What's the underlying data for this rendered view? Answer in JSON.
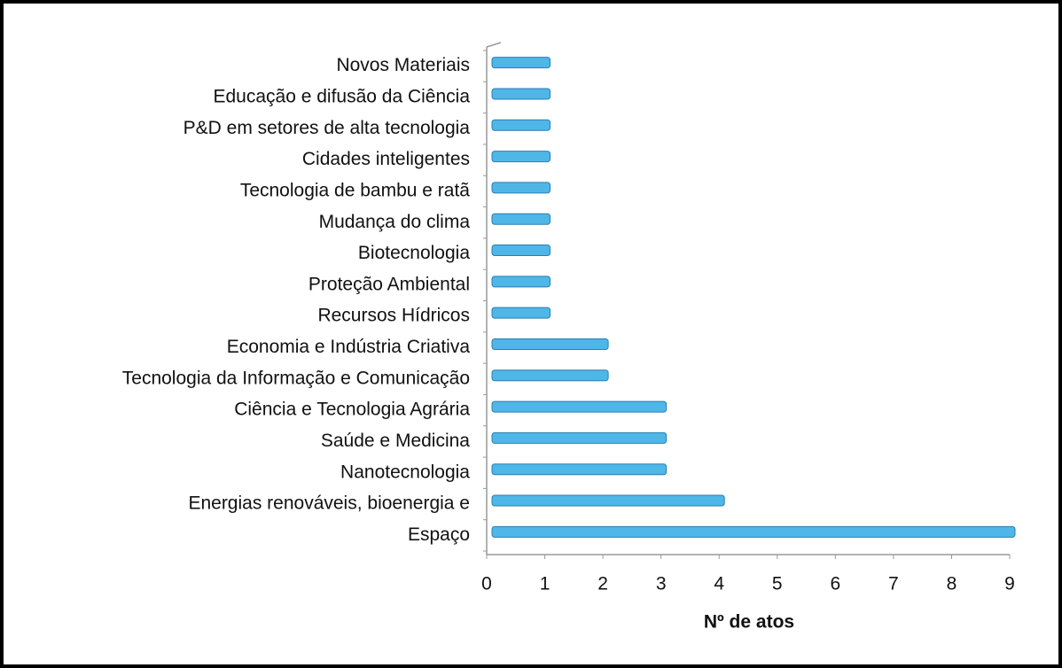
{
  "chart_data": {
    "type": "bar",
    "orientation": "horizontal",
    "categories": [
      "Novos Materiais",
      "Educação e difusão da Ciência",
      "P&D em setores de alta tecnologia",
      "Cidades inteligentes",
      "Tecnologia de bambu e ratã",
      "Mudança do clima",
      "Biotecnologia",
      "Proteção Ambiental",
      "Recursos Hídricos",
      "Economia e Indústria Criativa",
      "Tecnologia da Informação e Comunicação",
      "Ciência e Tecnologia Agrária",
      "Saúde e Medicina",
      "Nanotecnologia",
      "Energias renováveis, bioenergia e",
      "Espaço"
    ],
    "values": [
      1,
      1,
      1,
      1,
      1,
      1,
      1,
      1,
      1,
      2,
      2,
      3,
      3,
      3,
      4,
      9
    ],
    "color": "#4fb6e8",
    "x_label": "Nº de atos",
    "xlim": [
      0,
      9
    ],
    "xticks": [
      0,
      1,
      2,
      3,
      4,
      5,
      6,
      7,
      8,
      9
    ]
  }
}
